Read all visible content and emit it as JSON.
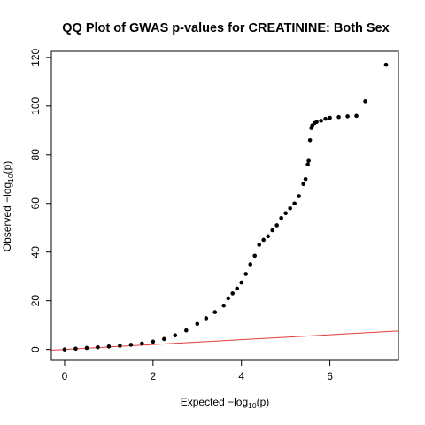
{
  "chart_data": {
    "type": "scatter",
    "title": "QQ Plot of GWAS p-values for CREATININE: Both Sex",
    "xlabel": {
      "prefix": "Expected  −log",
      "sub": "10",
      "suffix": "(p)"
    },
    "ylabel": {
      "prefix": "Observed  −log",
      "sub": "10",
      "suffix": "(p)"
    },
    "xlim": [
      -0.3,
      7.55
    ],
    "ylim": [
      -4.5,
      122.5
    ],
    "x_ticks": [
      0,
      2,
      4,
      6
    ],
    "y_ticks": [
      0,
      20,
      40,
      60,
      80,
      100,
      120
    ],
    "grid": false,
    "legend": "none",
    "reference_line": {
      "slope": 1,
      "intercept": 0,
      "color": "#e53935"
    },
    "point_color": "#000000",
    "series": [
      {
        "values_x": [
          0,
          0.25,
          0.5,
          0.75,
          1.0,
          1.25,
          1.5,
          1.75,
          2.0,
          2.25,
          2.5,
          2.75,
          3.0,
          3.2,
          3.4,
          3.6,
          3.7,
          3.8,
          3.9,
          4.0,
          4.1,
          4.2,
          4.3,
          4.4,
          4.5,
          4.6,
          4.7,
          4.8,
          4.9,
          5.0,
          5.1,
          5.2,
          5.3,
          5.4,
          5.45,
          5.5,
          5.52,
          5.55,
          5.58,
          5.6,
          5.65,
          5.7,
          5.8,
          5.9,
          6.0,
          6.2,
          6.4,
          6.6,
          6.8,
          7.27
        ],
        "values_y": [
          0,
          0.3,
          0.6,
          0.9,
          1.2,
          1.5,
          1.9,
          2.4,
          3.2,
          4.3,
          5.8,
          7.8,
          10.5,
          12.8,
          15.3,
          18.0,
          21.0,
          23.0,
          25.0,
          27.5,
          31.0,
          35.0,
          38.5,
          43.0,
          45.0,
          46.5,
          49.0,
          51.0,
          54.0,
          56.0,
          58.0,
          60.0,
          63.0,
          68.0,
          70.0,
          76.0,
          77.5,
          86.0,
          91.0,
          92.0,
          93.0,
          93.5,
          94.0,
          94.8,
          95.2,
          95.5,
          95.8,
          96.0,
          102.0,
          117.0
        ]
      }
    ]
  }
}
